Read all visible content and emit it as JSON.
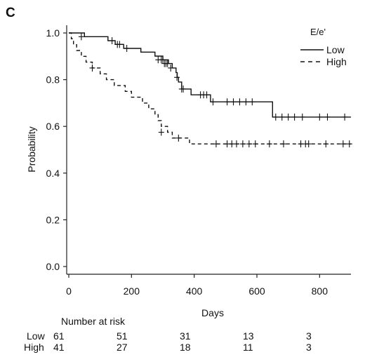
{
  "panel_label": "C",
  "chart_data": {
    "type": "line",
    "subtype": "kaplan-meier",
    "title": "",
    "xlabel": "Days",
    "ylabel": "Probability",
    "xlim": [
      0,
      900
    ],
    "ylim": [
      0,
      1.0
    ],
    "x_ticks": [
      "0",
      "200",
      "400",
      "600",
      "800"
    ],
    "x_tick_values": [
      0,
      200,
      400,
      600,
      800
    ],
    "y_ticks": [
      "0.0",
      "0.2",
      "0.4",
      "0.6",
      "0.8",
      "1.0"
    ],
    "y_tick_values": [
      0,
      0.2,
      0.4,
      0.6,
      0.8,
      1.0
    ],
    "grid": false,
    "legend": {
      "title": "E/e'",
      "position": "top-right",
      "entries": [
        {
          "label": "Low",
          "style": "solid"
        },
        {
          "label": "High",
          "style": "dashed"
        }
      ]
    },
    "series": [
      {
        "name": "Low",
        "style": "solid",
        "steps": [
          [
            0,
            1.0
          ],
          [
            50,
            0.984
          ],
          [
            125,
            0.967
          ],
          [
            148,
            0.951
          ],
          [
            175,
            0.934
          ],
          [
            230,
            0.918
          ],
          [
            275,
            0.901
          ],
          [
            300,
            0.885
          ],
          [
            318,
            0.869
          ],
          [
            330,
            0.85
          ],
          [
            342,
            0.83
          ],
          [
            346,
            0.81
          ],
          [
            350,
            0.79
          ],
          [
            360,
            0.76
          ],
          [
            390,
            0.735
          ],
          [
            452,
            0.705
          ],
          [
            650,
            0.64
          ],
          [
            900,
            0.64
          ]
        ],
        "censored": [
          [
            40,
            0.984
          ],
          [
            138,
            0.967
          ],
          [
            155,
            0.951
          ],
          [
            162,
            0.951
          ],
          [
            185,
            0.934
          ],
          [
            285,
            0.885
          ],
          [
            295,
            0.885
          ],
          [
            300,
            0.885
          ],
          [
            305,
            0.869
          ],
          [
            310,
            0.869
          ],
          [
            315,
            0.869
          ],
          [
            325,
            0.85
          ],
          [
            345,
            0.81
          ],
          [
            360,
            0.76
          ],
          [
            365,
            0.76
          ],
          [
            420,
            0.735
          ],
          [
            430,
            0.735
          ],
          [
            440,
            0.735
          ],
          [
            460,
            0.705
          ],
          [
            505,
            0.705
          ],
          [
            525,
            0.705
          ],
          [
            545,
            0.705
          ],
          [
            565,
            0.705
          ],
          [
            585,
            0.705
          ],
          [
            660,
            0.64
          ],
          [
            680,
            0.64
          ],
          [
            700,
            0.64
          ],
          [
            720,
            0.64
          ],
          [
            745,
            0.64
          ],
          [
            800,
            0.64
          ],
          [
            825,
            0.64
          ],
          [
            880,
            0.64
          ]
        ]
      },
      {
        "name": "High",
        "style": "dashed",
        "steps": [
          [
            0,
            1.0
          ],
          [
            8,
            0.975
          ],
          [
            15,
            0.95
          ],
          [
            25,
            0.925
          ],
          [
            40,
            0.9
          ],
          [
            55,
            0.875
          ],
          [
            75,
            0.85
          ],
          [
            100,
            0.825
          ],
          [
            120,
            0.8
          ],
          [
            145,
            0.775
          ],
          [
            180,
            0.75
          ],
          [
            200,
            0.725
          ],
          [
            235,
            0.7
          ],
          [
            255,
            0.675
          ],
          [
            275,
            0.65
          ],
          [
            285,
            0.625
          ],
          [
            295,
            0.6
          ],
          [
            315,
            0.575
          ],
          [
            330,
            0.55
          ],
          [
            385,
            0.525
          ],
          [
            900,
            0.525
          ]
        ],
        "censored": [
          [
            75,
            0.85
          ],
          [
            295,
            0.575
          ],
          [
            350,
            0.55
          ],
          [
            470,
            0.525
          ],
          [
            505,
            0.525
          ],
          [
            520,
            0.525
          ],
          [
            535,
            0.525
          ],
          [
            555,
            0.525
          ],
          [
            575,
            0.525
          ],
          [
            595,
            0.525
          ],
          [
            640,
            0.525
          ],
          [
            685,
            0.525
          ],
          [
            740,
            0.525
          ],
          [
            755,
            0.525
          ],
          [
            765,
            0.525
          ],
          [
            820,
            0.525
          ],
          [
            875,
            0.525
          ],
          [
            895,
            0.525
          ]
        ]
      }
    ]
  },
  "risk_table": {
    "title": "Number at risk",
    "rows": [
      {
        "label": "Low",
        "values": [
          "61",
          "51",
          "31",
          "13",
          "3"
        ]
      },
      {
        "label": "High",
        "values": [
          "41",
          "27",
          "18",
          "11",
          "3"
        ]
      }
    ]
  }
}
